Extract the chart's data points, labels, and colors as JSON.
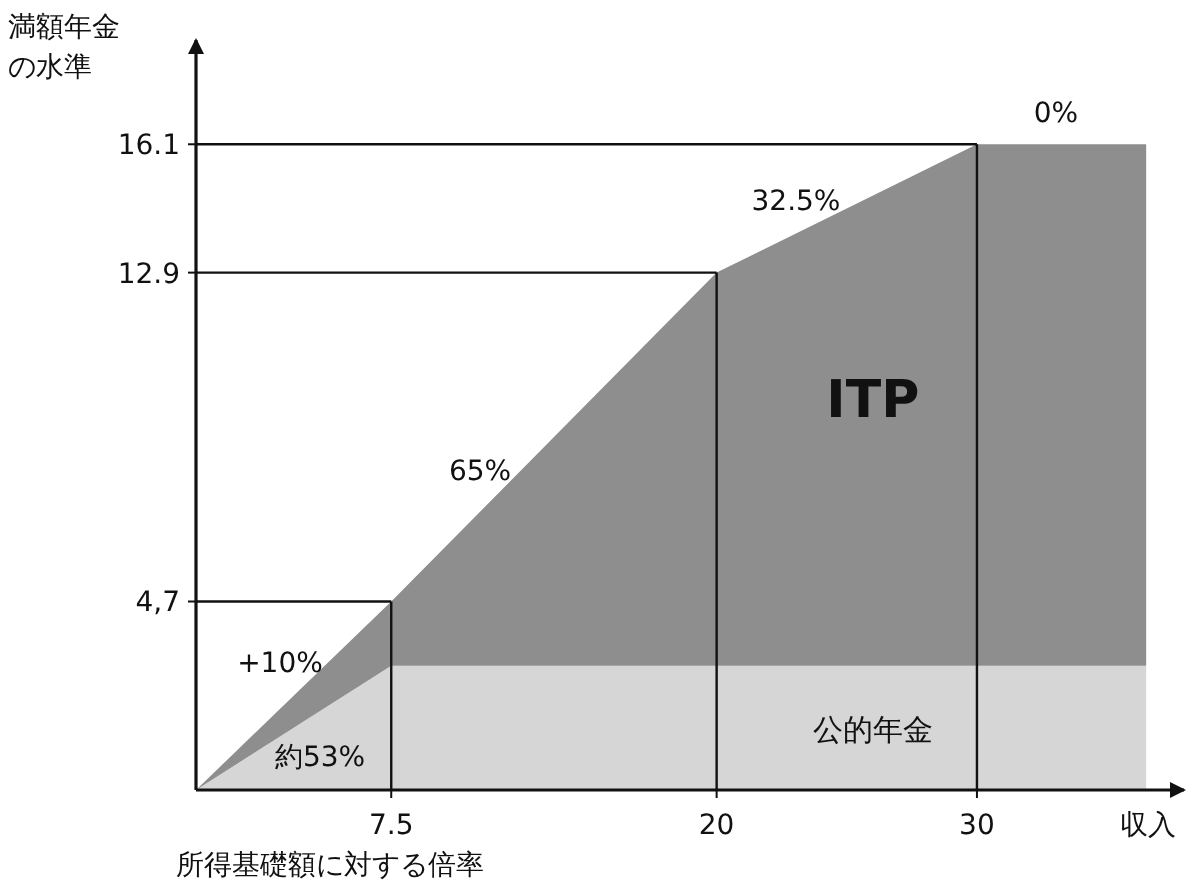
{
  "chart_data": {
    "type": "area",
    "stacked": true,
    "ylabel": "満額年金の水準",
    "xlabel": "所得基礎額に対する倍率",
    "x": [
      0,
      7.5,
      20,
      30,
      36.5
    ],
    "series": [
      {
        "name": "公的年金",
        "color": "#d6d6d6",
        "values": [
          0,
          3.1,
          3.1,
          3.1,
          3.1
        ]
      },
      {
        "name": "ITP",
        "color": "#8e8e8e",
        "values": [
          0,
          1.6,
          9.8,
          13.0,
          13.0
        ]
      }
    ],
    "xlim": [
      0,
      37.8
    ],
    "ylim": [
      0,
      18.7
    ],
    "xticks": [
      7.5,
      20,
      30
    ],
    "yticks": [
      {
        "value": 4.7,
        "label": "4,7"
      },
      12.9,
      16.1
    ],
    "ref_lines": [
      {
        "axis": "x",
        "value": 7.5,
        "label": null
      },
      {
        "axis": "x",
        "value": 20,
        "label": null
      },
      {
        "axis": "x",
        "value": 30,
        "label": null
      },
      {
        "axis": "y",
        "value": 4.7,
        "label": null
      },
      {
        "axis": "y",
        "value": 12.9,
        "label": null
      },
      {
        "axis": "y",
        "value": 16.1,
        "label": null
      }
    ],
    "annotations": [
      "約53%",
      "+10%",
      "65%",
      "32.5%",
      "0%",
      "収入"
    ]
  }
}
